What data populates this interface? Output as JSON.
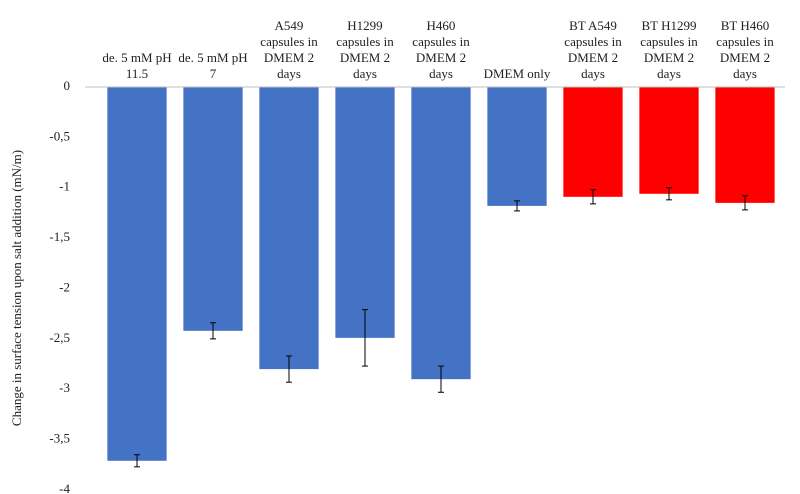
{
  "chart_data": {
    "type": "bar",
    "y_label": "Change in surface tension upon salt addition (mN/m)",
    "categories": [
      "de. 5 mM pH 11.5",
      "de. 5 mM pH 7",
      "A549 capsules in DMEM 2 days",
      "H1299 capsules in DMEM 2 days",
      "H460 capsules in DMEM 2 days",
      "DMEM only",
      "BT A549 capsules in DMEM 2 days",
      "BT H1299 capsules in DMEM 2 days",
      "BT H460 capsules in DMEM 2 days"
    ],
    "values": [
      -3.71,
      -2.42,
      -2.8,
      -2.49,
      -2.9,
      -1.18,
      -1.09,
      -1.06,
      -1.15
    ],
    "errors": [
      0.06,
      0.08,
      0.13,
      0.28,
      0.13,
      0.05,
      0.07,
      0.06,
      0.07
    ],
    "colors": [
      "#4472c4",
      "#4472c4",
      "#4472c4",
      "#4472c4",
      "#4472c4",
      "#4472c4",
      "#ff0000",
      "#ff0000",
      "#ff0000"
    ],
    "ylim": [
      -4,
      0
    ],
    "yticks": [
      -4,
      {
        "value": -3.5,
        "label": "-3,5"
      },
      -3,
      {
        "value": -2.5,
        "label": "-2,5"
      },
      -2,
      {
        "value": -1.5,
        "label": "-1,5"
      },
      -1,
      {
        "value": -0.5,
        "label": "-0,5"
      },
      0
    ],
    "grid": false
  }
}
